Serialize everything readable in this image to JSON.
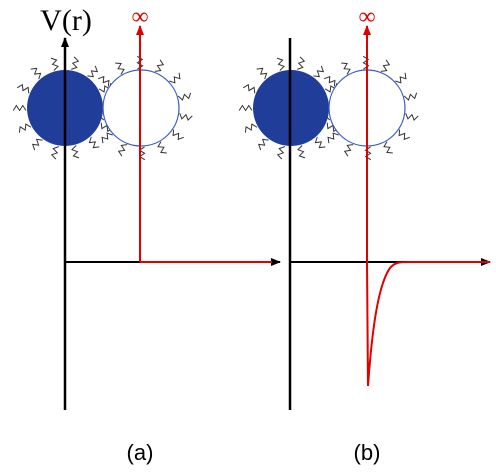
{
  "panels": [
    {
      "label": "(a)",
      "y_axis_label": "V(r)",
      "infinity_label": "∞"
    },
    {
      "label": "(b)",
      "infinity_label": "∞"
    }
  ]
}
